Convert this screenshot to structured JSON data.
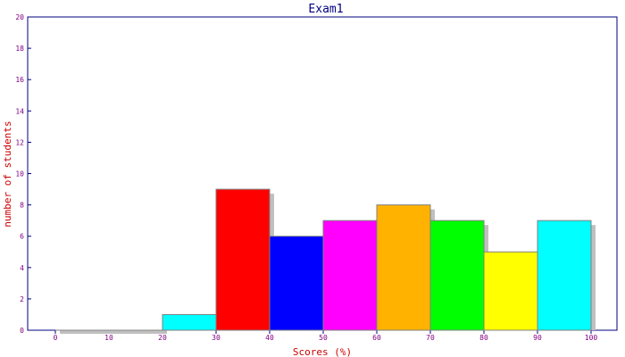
{
  "chart_data": {
    "type": "bar",
    "title": "Exam1",
    "xlabel": "Scores (%)",
    "ylabel": "number of students",
    "xlim": [
      0,
      105
    ],
    "ylim": [
      0,
      20
    ],
    "x_ticks": [
      0,
      10,
      20,
      30,
      40,
      50,
      60,
      70,
      80,
      90,
      100
    ],
    "y_ticks": [
      0,
      2,
      4,
      6,
      8,
      10,
      12,
      14,
      16,
      18,
      20
    ],
    "grid": false,
    "bins": [
      {
        "from": 0,
        "to": 10,
        "value": 0,
        "color": "#00ffff"
      },
      {
        "from": 10,
        "to": 20,
        "value": 0,
        "color": "#00ffff"
      },
      {
        "from": 20,
        "to": 30,
        "value": 1,
        "color": "#00ffff"
      },
      {
        "from": 30,
        "to": 40,
        "value": 9,
        "color": "#ff0000"
      },
      {
        "from": 40,
        "to": 50,
        "value": 6,
        "color": "#0000ff"
      },
      {
        "from": 50,
        "to": 60,
        "value": 7,
        "color": "#ff00ff"
      },
      {
        "from": 60,
        "to": 70,
        "value": 8,
        "color": "#ffb300"
      },
      {
        "from": 70,
        "to": 80,
        "value": 7,
        "color": "#00ff00"
      },
      {
        "from": 80,
        "to": 90,
        "value": 5,
        "color": "#ffff00"
      },
      {
        "from": 90,
        "to": 100,
        "value": 7,
        "color": "#00ffff"
      }
    ],
    "colors": {
      "frame": "#000080",
      "shadow": "#c0c0c0",
      "bar_outline": "#808080",
      "tick_text": "#800080",
      "axis_label": "#cc0000",
      "title": "#000080"
    }
  }
}
